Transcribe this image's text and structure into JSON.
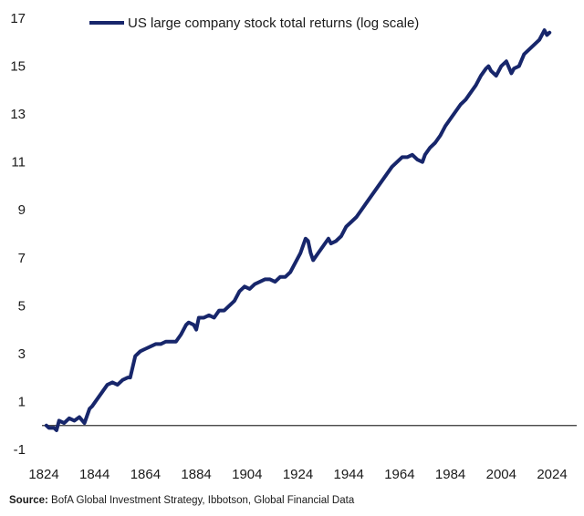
{
  "chart_data": {
    "type": "line",
    "title": "",
    "xlabel": "",
    "ylabel": "",
    "xlim": [
      1824,
      2024
    ],
    "ylim": [
      -1,
      17
    ],
    "x_ticks": [
      "1824",
      "1844",
      "1864",
      "1884",
      "1904",
      "1924",
      "1944",
      "1964",
      "1984",
      "2004",
      "2024"
    ],
    "y_ticks": [
      "17",
      "15",
      "13",
      "11",
      "9",
      "7",
      "5",
      "3",
      "1",
      "-1"
    ],
    "baseline": 0,
    "grid": false,
    "legend_position": "top-left",
    "colors": {
      "series": "#17266b",
      "baseline": "#333333"
    },
    "series": [
      {
        "name": "US large company stock total returns (log scale)",
        "x": [
          1825,
          1826,
          1828,
          1829,
          1830,
          1832,
          1834,
          1836,
          1838,
          1840,
          1842,
          1843,
          1845,
          1847,
          1849,
          1851,
          1853,
          1855,
          1857,
          1858,
          1860,
          1862,
          1863,
          1864,
          1866,
          1868,
          1870,
          1872,
          1874,
          1876,
          1878,
          1880,
          1881,
          1883,
          1884,
          1885,
          1887,
          1889,
          1891,
          1893,
          1895,
          1897,
          1899,
          1901,
          1903,
          1905,
          1907,
          1909,
          1911,
          1913,
          1915,
          1917,
          1919,
          1921,
          1923,
          1925,
          1927,
          1928,
          1929,
          1930,
          1932,
          1934,
          1936,
          1937,
          1939,
          1941,
          1943,
          1945,
          1947,
          1949,
          1951,
          1953,
          1955,
          1957,
          1959,
          1961,
          1963,
          1965,
          1967,
          1969,
          1971,
          1973,
          1974,
          1976,
          1978,
          1980,
          1982,
          1984,
          1986,
          1988,
          1990,
          1992,
          1994,
          1996,
          1998,
          1999,
          2000,
          2002,
          2004,
          2006,
          2008,
          2009,
          2011,
          2013,
          2015,
          2017,
          2019,
          2021,
          2022,
          2023
        ],
        "values": [
          0.0,
          -0.1,
          -0.1,
          -0.2,
          0.2,
          0.1,
          0.3,
          0.2,
          0.35,
          0.1,
          0.7,
          0.8,
          1.1,
          1.4,
          1.7,
          1.8,
          1.7,
          1.9,
          2.0,
          2.0,
          2.9,
          3.1,
          3.15,
          3.2,
          3.3,
          3.4,
          3.4,
          3.5,
          3.5,
          3.5,
          3.8,
          4.2,
          4.3,
          4.2,
          4.0,
          4.5,
          4.5,
          4.6,
          4.5,
          4.8,
          4.8,
          5.0,
          5.2,
          5.6,
          5.8,
          5.7,
          5.9,
          6.0,
          6.1,
          6.1,
          6.0,
          6.2,
          6.2,
          6.4,
          6.8,
          7.2,
          7.8,
          7.7,
          7.2,
          6.9,
          7.2,
          7.5,
          7.8,
          7.6,
          7.7,
          7.9,
          8.3,
          8.5,
          8.7,
          9.0,
          9.3,
          9.6,
          9.9,
          10.2,
          10.5,
          10.8,
          11.0,
          11.2,
          11.2,
          11.3,
          11.1,
          11.0,
          11.3,
          11.6,
          11.8,
          12.1,
          12.5,
          12.8,
          13.1,
          13.4,
          13.6,
          13.9,
          14.2,
          14.6,
          14.9,
          15.0,
          14.8,
          14.6,
          15.0,
          15.2,
          14.7,
          14.9,
          15.0,
          15.5,
          15.7,
          15.9,
          16.1,
          16.5,
          16.3,
          16.4
        ]
      }
    ]
  },
  "footer": {
    "source_label": "Source:",
    "source_text": "BofA Global Investment Strategy, Ibbotson, Global Financial Data"
  }
}
